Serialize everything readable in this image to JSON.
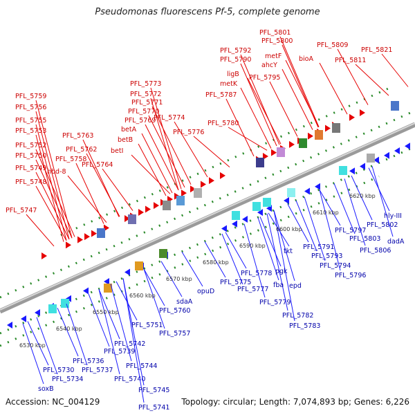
{
  "title": "Pseudomonas fluorescens Pf-5, complete genome",
  "accession": "Accession: NC_004129",
  "topology": "Topology: circular; Length: 7,074,893 bp; Genes: 6,226",
  "colors": {
    "forward": "#e60000",
    "reverse": "#1a1aff",
    "backbone": "#999999",
    "tick": "#2a8a2a",
    "top_label": "#cc0000",
    "bottom_label": "#0000aa"
  },
  "kbp_labels": [
    "6530 kbp",
    "6540 kbp",
    "6550 kbp",
    "6560 kbp",
    "6570 kbp",
    "6580 kbp",
    "6590 kbp",
    "6600 kbp",
    "6610 kbp",
    "6620 kbp"
  ],
  "top_labels": [
    "PFL_5747",
    "PFL_5748",
    "PFL_5749",
    "PFL_5750",
    "PFL_5752",
    "PFL_5753",
    "PFL_5755",
    "PFL_5756",
    "PFL_5759",
    "hbd-8",
    "PFL_5758",
    "PFL_5764",
    "PFL_5762",
    "PFL_5763",
    "betI",
    "betB",
    "betA",
    "PFL_5769",
    "PFL_5770",
    "PFL_5771",
    "PFL_5772",
    "PFL_5773",
    "PFL_5774",
    "PFL_5776",
    "PFL_5780",
    "PFL_5787",
    "metK",
    "ligB",
    "PFL_5790",
    "PFL_5792",
    "PFL_5795",
    "ahcY",
    "metF",
    "PFL_5800",
    "PFL_5801",
    "bioA",
    "PFL_5809",
    "PFL_5811",
    "PFL_5821"
  ],
  "bottom_labels": [
    "soxB",
    "PFL_5730",
    "PFL_5734",
    "PFL_5736",
    "PFL_5737",
    "PFL_5739",
    "PFL_5740",
    "PFL_5741",
    "PFL_5742",
    "PFL_5744",
    "PFL_5745",
    "PFL_5751",
    "PFL_5757",
    "PFL_5760",
    "sdaA",
    "opuD",
    "PFL_5775",
    "PFL_5777",
    "PFL_5778",
    "PFL_5779",
    "PFL_5782",
    "PFL_5783",
    "fba",
    "epd",
    "pgk",
    "tkt",
    "PFL_5791",
    "PFL_5793",
    "PFL_5794",
    "PFL_5796",
    "PFL_5797",
    "PFL_5802",
    "PFL_5803",
    "PFL_5806",
    "dadA",
    "hly-III"
  ]
}
